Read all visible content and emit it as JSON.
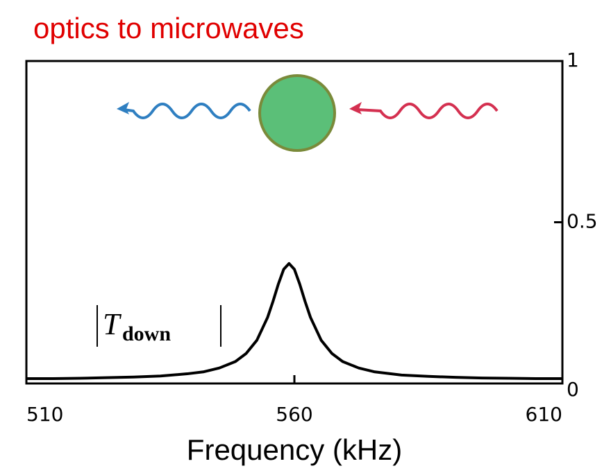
{
  "chart_data": {
    "type": "line",
    "title": "optics to microwaves",
    "x_label": "Frequency (kHz)",
    "annotation": {
      "main": "T",
      "subscript": "down"
    },
    "x": [
      510,
      515,
      520,
      525,
      530,
      535,
      540,
      543,
      546,
      549,
      551,
      553,
      555,
      556,
      557,
      558,
      559,
      560,
      561,
      562,
      563,
      565,
      567,
      569,
      572,
      575,
      580,
      585,
      590,
      595,
      600,
      605,
      610
    ],
    "series": [
      {
        "color": "#000000",
        "values": [
          0.015,
          0.015,
          0.016,
          0.018,
          0.02,
          0.023,
          0.03,
          0.036,
          0.048,
          0.068,
          0.093,
          0.134,
          0.205,
          0.254,
          0.308,
          0.354,
          0.372,
          0.354,
          0.308,
          0.254,
          0.205,
          0.134,
          0.093,
          0.068,
          0.048,
          0.036,
          0.026,
          0.022,
          0.019,
          0.017,
          0.016,
          0.015,
          0.015
        ]
      }
    ],
    "xlim": [
      510,
      610
    ],
    "xticks": [
      510,
      560,
      610
    ],
    "ylim": [
      0,
      1
    ],
    "yticks": [
      0,
      0.5,
      1
    ],
    "y_axis_side": "right"
  }
}
